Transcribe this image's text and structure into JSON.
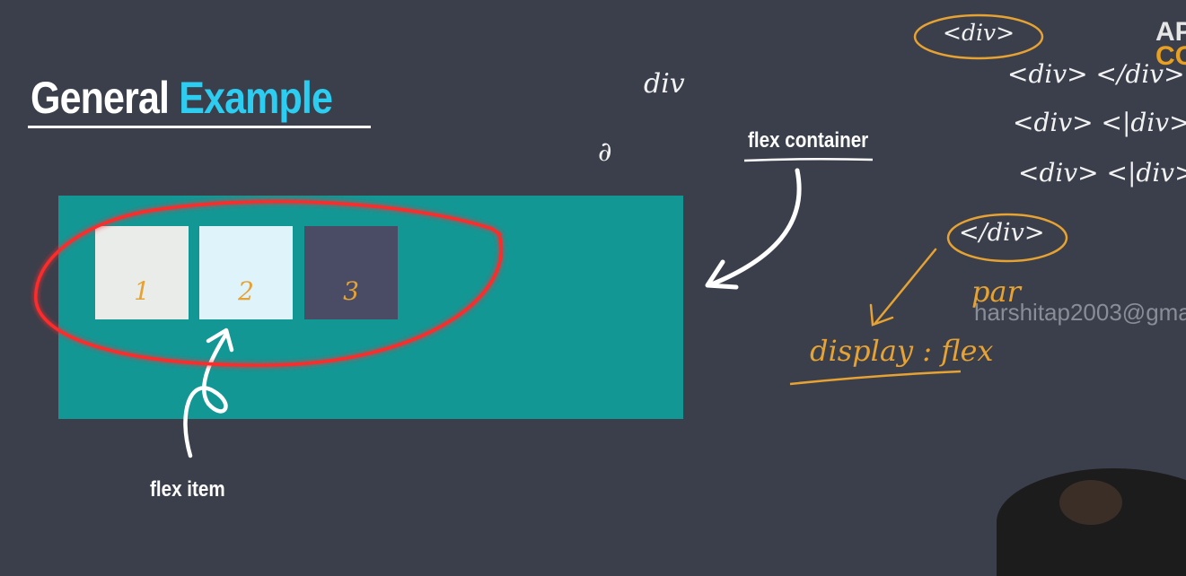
{
  "slide": {
    "title_plain": "General",
    "title_accent": "Example",
    "flex_container_label": "flex container",
    "flex_item_label": "flex item",
    "items": [
      "1",
      "2",
      "3"
    ]
  },
  "annotations": {
    "div_word": "div",
    "tick": "∂",
    "div_open": "<div>",
    "div_pair_1": "<div> </div>",
    "div_pair_2": "<div> <|div>",
    "div_pair_3": "<div> <|div>",
    "div_close": "</div>",
    "par": "par",
    "display_flex": "display : flex"
  },
  "watermark": "harshitap2003@gma",
  "brand": {
    "line1": "AP",
    "line2": "COL"
  },
  "colors": {
    "background": "#3a3f4b",
    "accent_cyan": "#2ccdf0",
    "container_teal": "#139795",
    "handwriting_orange": "#e6a232",
    "highlight_red": "#ff2020"
  }
}
